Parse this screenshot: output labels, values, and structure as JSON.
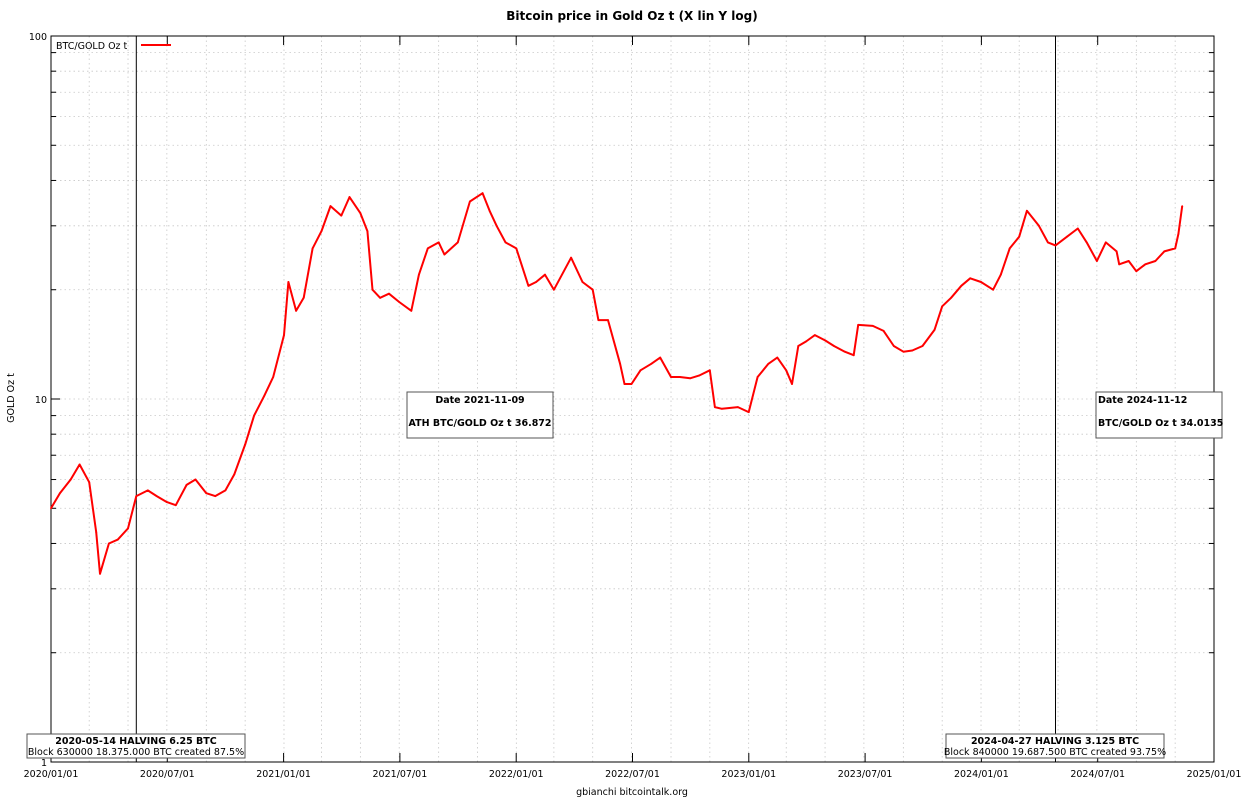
{
  "chart_data": {
    "type": "line",
    "title": "Bitcoin price in Gold Oz t (X lin Y log)",
    "xlabel": "gbianchi bitcointalk.org",
    "ylabel": "GOLD Oz t",
    "yscale": "log",
    "xlim": [
      "2020-01-01",
      "2025-01-01"
    ],
    "ylim": [
      1,
      100
    ],
    "grid": true,
    "legend_position": "top-left",
    "x_tick_labels": [
      "2020/01/01",
      "2020/07/01",
      "2021/01/01",
      "2021/07/01",
      "2022/01/01",
      "2022/07/01",
      "2023/01/01",
      "2023/07/01",
      "2024/01/01",
      "2024/07/01",
      "2025/01/01"
    ],
    "y_tick_labels": [
      "1",
      "10",
      "100"
    ],
    "series": [
      {
        "name": "BTC/GOLD Oz t",
        "color": "#ff0000",
        "points": [
          [
            "2020-01-01",
            5.0
          ],
          [
            "2020-01-15",
            5.5
          ],
          [
            "2020-02-01",
            6.0
          ],
          [
            "2020-02-15",
            6.6
          ],
          [
            "2020-03-01",
            5.9
          ],
          [
            "2020-03-12",
            4.3
          ],
          [
            "2020-03-18",
            3.3
          ],
          [
            "2020-04-01",
            4.0
          ],
          [
            "2020-04-15",
            4.1
          ],
          [
            "2020-05-01",
            4.4
          ],
          [
            "2020-05-14",
            5.4
          ],
          [
            "2020-06-01",
            5.6
          ],
          [
            "2020-06-15",
            5.4
          ],
          [
            "2020-07-01",
            5.2
          ],
          [
            "2020-07-15",
            5.1
          ],
          [
            "2020-08-01",
            5.8
          ],
          [
            "2020-08-15",
            6.0
          ],
          [
            "2020-09-01",
            5.5
          ],
          [
            "2020-09-15",
            5.4
          ],
          [
            "2020-10-01",
            5.6
          ],
          [
            "2020-10-15",
            6.2
          ],
          [
            "2020-11-01",
            7.5
          ],
          [
            "2020-11-15",
            9.0
          ],
          [
            "2020-12-01",
            10.2
          ],
          [
            "2020-12-15",
            11.5
          ],
          [
            "2021-01-01",
            15.0
          ],
          [
            "2021-01-08",
            21.0
          ],
          [
            "2021-01-20",
            17.5
          ],
          [
            "2021-02-01",
            19.0
          ],
          [
            "2021-02-15",
            26.0
          ],
          [
            "2021-03-01",
            29.0
          ],
          [
            "2021-03-15",
            34.0
          ],
          [
            "2021-04-01",
            32.0
          ],
          [
            "2021-04-14",
            36.0
          ],
          [
            "2021-05-01",
            32.5
          ],
          [
            "2021-05-12",
            29.0
          ],
          [
            "2021-05-20",
            20.0
          ],
          [
            "2021-06-01",
            19.0
          ],
          [
            "2021-06-15",
            19.5
          ],
          [
            "2021-07-01",
            18.5
          ],
          [
            "2021-07-20",
            17.5
          ],
          [
            "2021-08-01",
            22.0
          ],
          [
            "2021-08-15",
            26.0
          ],
          [
            "2021-09-01",
            27.0
          ],
          [
            "2021-09-10",
            25.0
          ],
          [
            "2021-10-01",
            27.0
          ],
          [
            "2021-10-20",
            35.0
          ],
          [
            "2021-11-09",
            36.9
          ],
          [
            "2021-11-20",
            33.0
          ],
          [
            "2021-12-01",
            30.0
          ],
          [
            "2021-12-15",
            27.0
          ],
          [
            "2022-01-01",
            26.0
          ],
          [
            "2022-01-20",
            20.5
          ],
          [
            "2022-02-01",
            21.0
          ],
          [
            "2022-02-15",
            22.0
          ],
          [
            "2022-03-01",
            20.0
          ],
          [
            "2022-03-28",
            24.5
          ],
          [
            "2022-04-15",
            21.0
          ],
          [
            "2022-05-01",
            20.0
          ],
          [
            "2022-05-10",
            16.5
          ],
          [
            "2022-05-25",
            16.5
          ],
          [
            "2022-06-13",
            12.5
          ],
          [
            "2022-06-20",
            11.0
          ],
          [
            "2022-07-01",
            11.0
          ],
          [
            "2022-07-15",
            12.0
          ],
          [
            "2022-08-01",
            12.5
          ],
          [
            "2022-08-15",
            13.0
          ],
          [
            "2022-09-01",
            11.5
          ],
          [
            "2022-09-15",
            11.5
          ],
          [
            "2022-10-01",
            11.4
          ],
          [
            "2022-10-15",
            11.6
          ],
          [
            "2022-11-01",
            12.0
          ],
          [
            "2022-11-09",
            9.5
          ],
          [
            "2022-11-20",
            9.4
          ],
          [
            "2022-12-15",
            9.5
          ],
          [
            "2023-01-01",
            9.2
          ],
          [
            "2023-01-15",
            11.5
          ],
          [
            "2023-02-01",
            12.5
          ],
          [
            "2023-02-15",
            13.0
          ],
          [
            "2023-03-01",
            12.0
          ],
          [
            "2023-03-10",
            11.0
          ],
          [
            "2023-03-20",
            14.0
          ],
          [
            "2023-04-01",
            14.4
          ],
          [
            "2023-04-15",
            15.0
          ],
          [
            "2023-05-01",
            14.5
          ],
          [
            "2023-05-15",
            14.0
          ],
          [
            "2023-06-01",
            13.5
          ],
          [
            "2023-06-15",
            13.2
          ],
          [
            "2023-06-22",
            16.0
          ],
          [
            "2023-07-15",
            15.9
          ],
          [
            "2023-08-01",
            15.4
          ],
          [
            "2023-08-17",
            14.0
          ],
          [
            "2023-09-01",
            13.5
          ],
          [
            "2023-09-15",
            13.6
          ],
          [
            "2023-10-01",
            14.0
          ],
          [
            "2023-10-20",
            15.5
          ],
          [
            "2023-11-01",
            18.0
          ],
          [
            "2023-11-15",
            19.0
          ],
          [
            "2023-12-01",
            20.5
          ],
          [
            "2023-12-15",
            21.5
          ],
          [
            "2024-01-01",
            21.0
          ],
          [
            "2024-01-20",
            20.0
          ],
          [
            "2024-02-01",
            22.0
          ],
          [
            "2024-02-15",
            26.0
          ],
          [
            "2024-03-01",
            28.0
          ],
          [
            "2024-03-13",
            33.0
          ],
          [
            "2024-04-01",
            30.0
          ],
          [
            "2024-04-15",
            27.0
          ],
          [
            "2024-04-27",
            26.5
          ],
          [
            "2024-05-15",
            28.0
          ],
          [
            "2024-06-01",
            29.5
          ],
          [
            "2024-06-15",
            27.0
          ],
          [
            "2024-07-01",
            24.0
          ],
          [
            "2024-07-15",
            27.0
          ],
          [
            "2024-08-01",
            25.5
          ],
          [
            "2024-08-05",
            23.5
          ],
          [
            "2024-08-20",
            24.0
          ],
          [
            "2024-09-01",
            22.5
          ],
          [
            "2024-09-15",
            23.5
          ],
          [
            "2024-10-01",
            24.0
          ],
          [
            "2024-10-15",
            25.5
          ],
          [
            "2024-11-01",
            26.0
          ],
          [
            "2024-11-06",
            28.5
          ],
          [
            "2024-11-12",
            34.0
          ]
        ]
      }
    ],
    "vertical_markers": [
      {
        "date": "2020-05-14",
        "line1": "2020-05-14 HALVING 6.25 BTC",
        "line2": "Block 630000 18.375.000 BTC created 87.5%"
      },
      {
        "date": "2024-04-27",
        "line1": "2024-04-27 HALVING 3.125 BTC",
        "line2": "Block 840000 19.687.500 BTC created 93.75%"
      }
    ],
    "annotations": [
      {
        "line1": "Date 2021-11-09",
        "line2": "ATH BTC/GOLD Oz t 36.872"
      },
      {
        "line1": "Date 2024-11-12",
        "line2": "BTC/GOLD Oz t 34.0135"
      }
    ]
  }
}
